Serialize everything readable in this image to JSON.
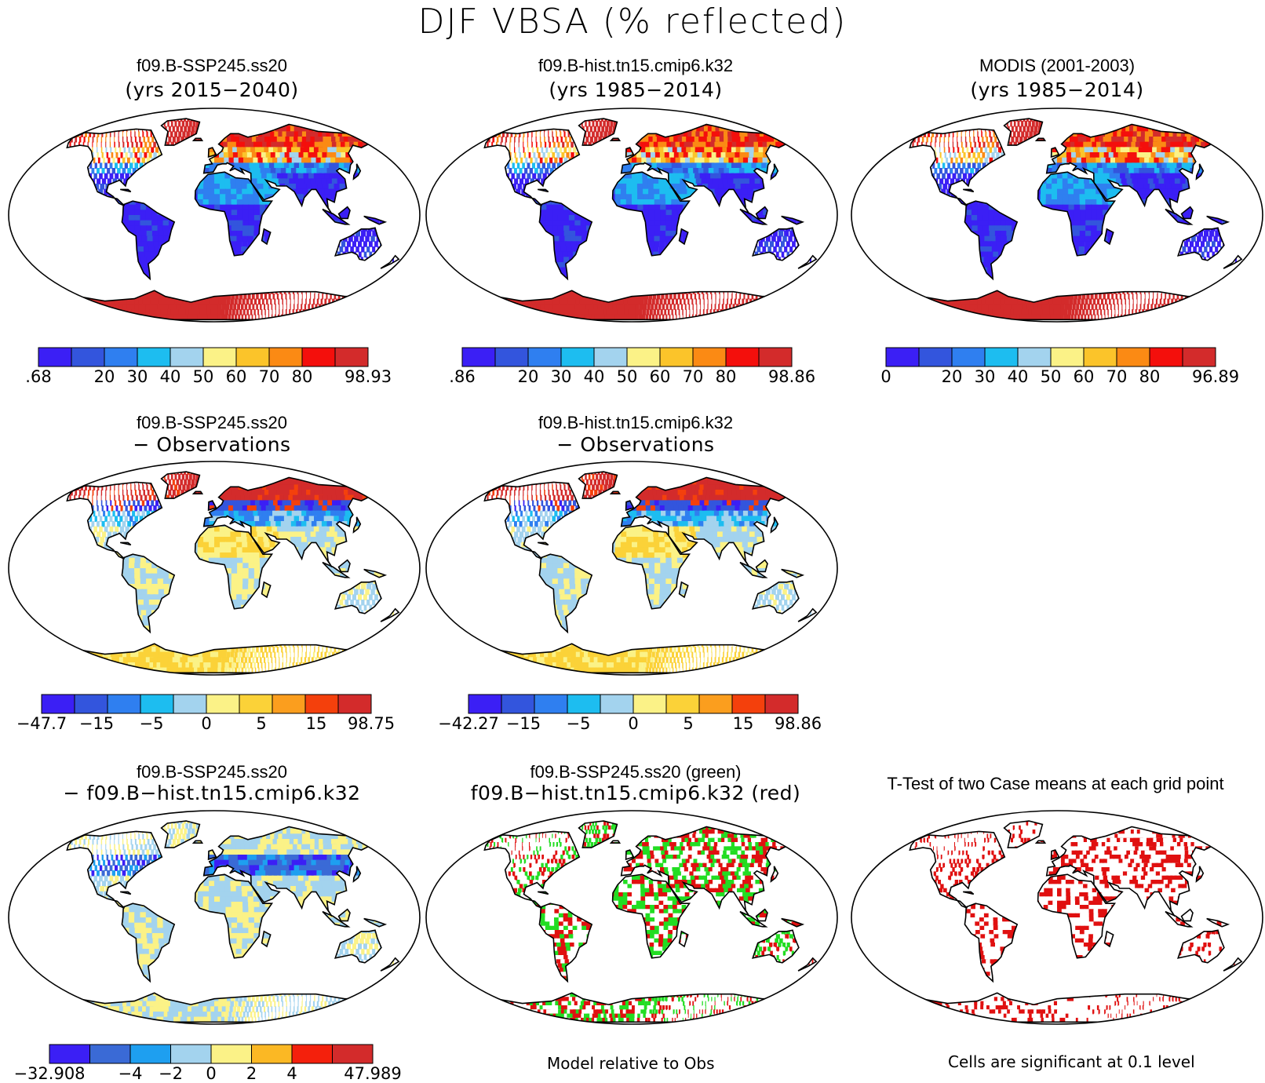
{
  "title": "DJF VBSA (% reflected)",
  "panels": [
    {
      "id": "p1",
      "title": "f09.B-SSP245.ss20",
      "subtitle": "(yrs 2015−2040)",
      "kind": "mean",
      "colorbar": {
        "colors": [
          "#3b1ff5",
          "#3355dd",
          "#2f7ff0",
          "#1dbdf0",
          "#a3d3ee",
          "#fbf287",
          "#fbc42a",
          "#fb8a14",
          "#f40f0c",
          "#d32b2b"
        ],
        "labels": [
          ".68",
          "20",
          "30",
          "40",
          "50",
          "60",
          "70",
          "80",
          "98.93"
        ]
      }
    },
    {
      "id": "p2",
      "title": "f09.B-hist.tn15.cmip6.k32",
      "subtitle": "(yrs 1985−2014)",
      "kind": "mean",
      "colorbar": {
        "colors": [
          "#3b1ff5",
          "#3355dd",
          "#2f7ff0",
          "#1dbdf0",
          "#a3d3ee",
          "#fbf287",
          "#fbc42a",
          "#fb8a14",
          "#f40f0c",
          "#d32b2b"
        ],
        "labels": [
          ".86",
          "20",
          "30",
          "40",
          "50",
          "60",
          "70",
          "80",
          "98.86"
        ]
      }
    },
    {
      "id": "p3",
      "title": "MODIS (2001-2003)",
      "subtitle": "(yrs 1985−2014)",
      "kind": "obs",
      "colorbar": {
        "colors": [
          "#3b1ff5",
          "#3355dd",
          "#2f7ff0",
          "#1dbdf0",
          "#a3d3ee",
          "#fbf287",
          "#fbc42a",
          "#fb8a14",
          "#f40f0c",
          "#d32b2b"
        ],
        "labels": [
          "0",
          "20",
          "30",
          "40",
          "50",
          "60",
          "70",
          "80",
          "96.89"
        ]
      }
    },
    {
      "id": "p4",
      "title": "f09.B-SSP245.ss20",
      "subtitle": "− Observations",
      "kind": "diff",
      "colorbar": {
        "colors": [
          "#3b1ff5",
          "#3355dd",
          "#2f7ff0",
          "#1dbdf0",
          "#a3d3ee",
          "#fbf287",
          "#fbd238",
          "#fb9e1e",
          "#f4400c",
          "#d32b2b"
        ],
        "labels": [
          "−47.7",
          "−15",
          "−5",
          "0",
          "5",
          "15",
          "98.75"
        ]
      }
    },
    {
      "id": "p5",
      "title": "f09.B-hist.tn15.cmip6.k32",
      "subtitle": "− Observations",
      "kind": "diff",
      "colorbar": {
        "colors": [
          "#3b1ff5",
          "#3355dd",
          "#2f7ff0",
          "#1dbdf0",
          "#a3d3ee",
          "#fbf287",
          "#fbd238",
          "#fb9e1e",
          "#f4400c",
          "#d32b2b"
        ],
        "labels": [
          "−42.27",
          "−15",
          "−5",
          "0",
          "5",
          "15",
          "98.86"
        ]
      }
    },
    {
      "id": "p6",
      "title": "f09.B-SSP245.ss20",
      "subtitle": "− f09.B−hist.tn15.cmip6.k32",
      "kind": "casediff",
      "colorbar": {
        "colors": [
          "#3b1ff5",
          "#3a6ad6",
          "#1e9ff0",
          "#a3d3ee",
          "#fbf287",
          "#fbb824",
          "#f4200c",
          "#d32b2b"
        ],
        "labels": [
          "−32.908",
          "−4",
          "−2",
          "0",
          "2",
          "4",
          "47.989"
        ]
      }
    },
    {
      "id": "p7",
      "title": "f09.B-SSP245.ss20 (green)",
      "subtitle": "f09.B−hist.tn15.cmip6.k32 (red)",
      "kind": "rmse"
    },
    {
      "id": "p8",
      "title": "T-Test of two Case means at each grid point",
      "subtitle": "",
      "kind": "ttest"
    }
  ],
  "footnotes": {
    "rmse": "Model relative to Obs",
    "ttest": "Cells are significant at 0.1 level"
  },
  "colors": {
    "green": "#22dd22",
    "red": "#e01010",
    "outline": "#000000"
  }
}
